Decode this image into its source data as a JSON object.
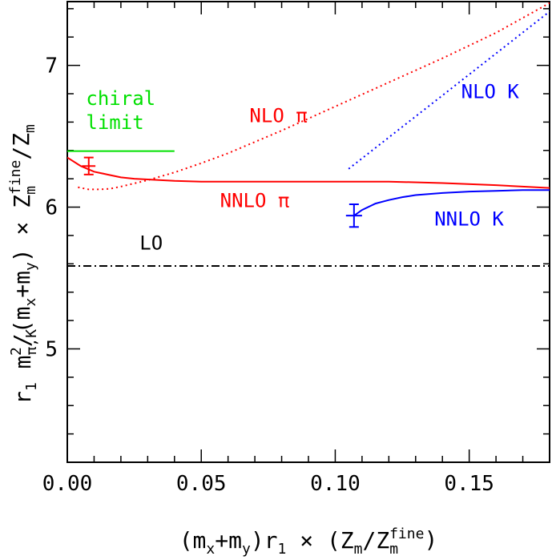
{
  "chart_data": {
    "type": "line",
    "title": "",
    "xlabel": {
      "parts": [
        "(m",
        "x",
        "+m",
        "y",
        ")r",
        "1",
        " × (Z",
        "m",
        "/Z",
        "m",
        "fine",
        ")"
      ]
    },
    "ylabel": {
      "parts": [
        "r",
        "1",
        " m",
        "π,K",
        "2",
        "/(m",
        "x",
        "+m",
        "y",
        ") × Z",
        "m",
        "fine",
        "/Z",
        "m"
      ]
    },
    "xlim": [
      0.0,
      0.18
    ],
    "ylim": [
      4.2,
      7.45
    ],
    "x_ticks": [
      0.0,
      0.05,
      0.1,
      0.15
    ],
    "x_tick_labels": [
      "0.00",
      "0.05",
      "0.10",
      "0.15"
    ],
    "x_minor_step": 0.01,
    "y_ticks": [
      5,
      6,
      7
    ],
    "y_tick_labels": [
      "5",
      "6",
      "7"
    ],
    "y_minor_step": 0.2,
    "grid": false,
    "colors": {
      "pi": "#ff0000",
      "K": "#0000ff",
      "chiral": "#00e000",
      "lo": "#000000"
    },
    "series": [
      {
        "name": "NNLO π",
        "style": "solid",
        "color": "#ff0000",
        "x": [
          0.0,
          0.005,
          0.01,
          0.015,
          0.02,
          0.025,
          0.03,
          0.04,
          0.05,
          0.06,
          0.08,
          0.1,
          0.12,
          0.14,
          0.16,
          0.18
        ],
        "y": [
          6.35,
          6.29,
          6.25,
          6.23,
          6.21,
          6.2,
          6.195,
          6.185,
          6.18,
          6.18,
          6.18,
          6.18,
          6.18,
          6.17,
          6.155,
          6.135
        ]
      },
      {
        "name": "NLO π",
        "style": "dotted",
        "color": "#ff0000",
        "x": [
          0.004,
          0.008,
          0.012,
          0.016,
          0.02,
          0.03,
          0.04,
          0.05,
          0.06,
          0.08,
          0.1,
          0.12,
          0.14,
          0.16,
          0.18
        ],
        "y": [
          6.14,
          6.125,
          6.125,
          6.13,
          6.145,
          6.19,
          6.245,
          6.31,
          6.38,
          6.54,
          6.71,
          6.88,
          7.05,
          7.23,
          7.44
        ]
      },
      {
        "name": "NNLO K",
        "style": "solid",
        "color": "#0000ff",
        "x": [
          0.107,
          0.11,
          0.115,
          0.12,
          0.125,
          0.13,
          0.14,
          0.15,
          0.16,
          0.17,
          0.18
        ],
        "y": [
          5.94,
          5.98,
          6.025,
          6.05,
          6.07,
          6.085,
          6.1,
          6.11,
          6.115,
          6.12,
          6.12
        ]
      },
      {
        "name": "NLO K",
        "style": "dotted",
        "color": "#0000ff",
        "x": [
          0.105,
          0.18
        ],
        "y": [
          6.27,
          7.38
        ]
      },
      {
        "name": "LO",
        "style": "dashdot",
        "color": "#000000",
        "x": [
          0.0,
          0.18
        ],
        "y": [
          5.585,
          5.585
        ]
      },
      {
        "name": "chiral limit",
        "style": "solid",
        "color": "#00e000",
        "x": [
          0.0,
          0.04
        ],
        "y": [
          6.395,
          6.395
        ]
      }
    ],
    "points": [
      {
        "name": "pion point",
        "color": "#ff0000",
        "x": 0.008,
        "y": 6.29,
        "x_err": 0.0025,
        "y_err": 0.06
      },
      {
        "name": "kaon point",
        "color": "#0000ff",
        "x": 0.107,
        "y": 5.94,
        "x_err": 0.003,
        "y_err": 0.08
      }
    ],
    "annotations": [
      {
        "text": "chiral",
        "color": "#00e000",
        "x": 0.007,
        "y": 6.72
      },
      {
        "text": "limit",
        "color": "#00e000",
        "x": 0.007,
        "y": 6.55
      },
      {
        "text": "NLO π",
        "color": "#ff0000",
        "x": 0.068,
        "y": 6.6
      },
      {
        "text": "NNLO π",
        "color": "#ff0000",
        "x": 0.057,
        "y": 6.0
      },
      {
        "text": "NLO K",
        "color": "#0000ff",
        "x": 0.147,
        "y": 6.77
      },
      {
        "text": "NNLO K",
        "color": "#0000ff",
        "x": 0.137,
        "y": 5.87
      },
      {
        "text": "LO",
        "color": "#000000",
        "x": 0.027,
        "y": 5.7
      }
    ]
  }
}
